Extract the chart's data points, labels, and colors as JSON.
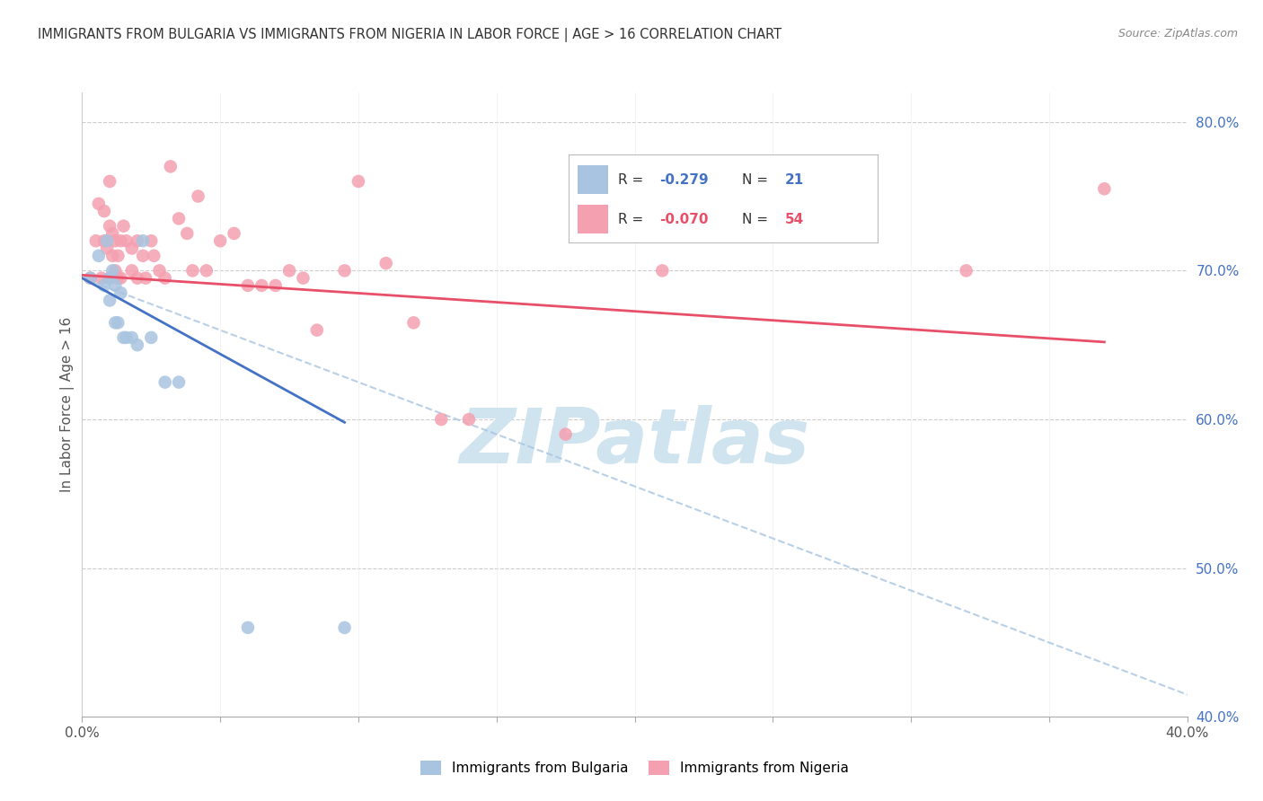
{
  "title": "IMMIGRANTS FROM BULGARIA VS IMMIGRANTS FROM NIGERIA IN LABOR FORCE | AGE > 16 CORRELATION CHART",
  "source": "Source: ZipAtlas.com",
  "ylabel": "In Labor Force | Age > 16",
  "x_min": 0.0,
  "x_max": 0.4,
  "y_min": 0.4,
  "y_max": 0.82,
  "x_ticks": [
    0.0,
    0.05,
    0.1,
    0.15,
    0.2,
    0.25,
    0.3,
    0.35,
    0.4
  ],
  "y_ticks_right": [
    0.4,
    0.5,
    0.6,
    0.7,
    0.8
  ],
  "y_tick_labels_right": [
    "40.0%",
    "50.0%",
    "60.0%",
    "70.0%",
    "80.0%"
  ],
  "legend_bulgaria_R": "-0.279",
  "legend_bulgaria_N": "21",
  "legend_nigeria_R": "-0.070",
  "legend_nigeria_N": "54",
  "bulgaria_color": "#a8c4e0",
  "nigeria_color": "#f4a0b0",
  "bulgaria_line_color": "#4472c4",
  "nigeria_line_color": "#e8506a",
  "dashed_line_color": "#a8c4e0",
  "watermark_text": "ZIPatlas",
  "watermark_color": "#d0e4f0",
  "title_color": "#333333",
  "source_color": "#888888",
  "right_axis_color": "#4472c4",
  "background_color": "#ffffff",
  "bulgaria_scatter_x": [
    0.003,
    0.006,
    0.008,
    0.009,
    0.01,
    0.01,
    0.011,
    0.012,
    0.012,
    0.013,
    0.014,
    0.015,
    0.016,
    0.018,
    0.02,
    0.022,
    0.025,
    0.03,
    0.035,
    0.06,
    0.095
  ],
  "bulgaria_scatter_y": [
    0.695,
    0.71,
    0.69,
    0.72,
    0.695,
    0.68,
    0.7,
    0.69,
    0.665,
    0.665,
    0.685,
    0.655,
    0.655,
    0.655,
    0.65,
    0.72,
    0.655,
    0.625,
    0.625,
    0.46,
    0.46
  ],
  "nigeria_scatter_x": [
    0.003,
    0.005,
    0.006,
    0.007,
    0.008,
    0.008,
    0.009,
    0.01,
    0.01,
    0.01,
    0.011,
    0.011,
    0.012,
    0.012,
    0.013,
    0.013,
    0.014,
    0.014,
    0.015,
    0.016,
    0.018,
    0.018,
    0.02,
    0.02,
    0.022,
    0.023,
    0.025,
    0.026,
    0.028,
    0.03,
    0.032,
    0.035,
    0.038,
    0.04,
    0.042,
    0.045,
    0.05,
    0.055,
    0.06,
    0.065,
    0.07,
    0.075,
    0.08,
    0.085,
    0.095,
    0.1,
    0.11,
    0.12,
    0.13,
    0.14,
    0.175,
    0.21,
    0.32,
    0.37
  ],
  "nigeria_scatter_y": [
    0.695,
    0.72,
    0.745,
    0.695,
    0.72,
    0.74,
    0.715,
    0.76,
    0.73,
    0.695,
    0.725,
    0.71,
    0.72,
    0.7,
    0.71,
    0.695,
    0.72,
    0.695,
    0.73,
    0.72,
    0.715,
    0.7,
    0.72,
    0.695,
    0.71,
    0.695,
    0.72,
    0.71,
    0.7,
    0.695,
    0.77,
    0.735,
    0.725,
    0.7,
    0.75,
    0.7,
    0.72,
    0.725,
    0.69,
    0.69,
    0.69,
    0.7,
    0.695,
    0.66,
    0.7,
    0.76,
    0.705,
    0.665,
    0.6,
    0.6,
    0.59,
    0.7,
    0.7,
    0.755
  ],
  "bulgaria_trend_x": [
    0.0,
    0.095
  ],
  "bulgaria_trend_y": [
    0.695,
    0.598
  ],
  "nigeria_trend_x": [
    0.0,
    0.37
  ],
  "nigeria_trend_y": [
    0.697,
    0.652
  ],
  "dashed_trend_x": [
    0.0,
    0.4
  ],
  "dashed_trend_y": [
    0.695,
    0.415
  ]
}
